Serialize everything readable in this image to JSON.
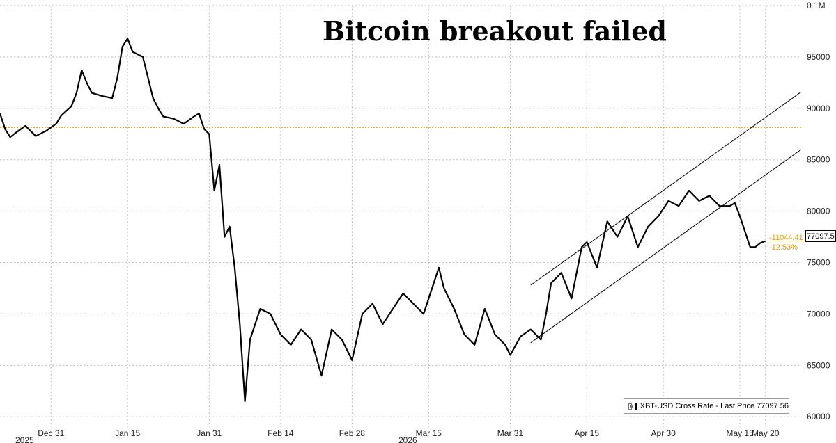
{
  "chart_data": {
    "type": "line",
    "title": "Bitcoin breakout failed",
    "xlabel": "",
    "ylabel": "",
    "x_tick_labels": [
      "Dec 31",
      "Jan 15",
      "Jan 31",
      "Feb 14",
      "Feb 28",
      "Mar 15",
      "Mar 31",
      "Apr 15",
      "Apr 30",
      "May 15",
      "May 20"
    ],
    "x_tick_dates": [
      "2025-12-31",
      "2026-01-15",
      "2026-01-31",
      "2026-02-14",
      "2026-02-28",
      "2026-03-15",
      "2026-03-31",
      "2026-04-15",
      "2026-04-30",
      "2026-05-15",
      "2026-05-20"
    ],
    "year_labels": [
      "2025",
      "2026"
    ],
    "y_tick_labels": [
      "60000",
      "65000",
      "70000",
      "75000",
      "80000",
      "85000",
      "90000",
      "95000",
      "0.1M"
    ],
    "y_tick_values": [
      60000,
      65000,
      70000,
      75000,
      80000,
      85000,
      90000,
      95000,
      100000
    ],
    "ylim": [
      59000,
      100000
    ],
    "xlim": [
      "2025-12-21",
      "2026-05-27"
    ],
    "grid": true,
    "legend_position": "bottom-right",
    "series": [
      {
        "name": "XBT-USD Cross Rate - Last Price 77097.56",
        "color": "#000000",
        "x": [
          "2025-12-21",
          "2025-12-22",
          "2025-12-23",
          "2025-12-24",
          "2025-12-26",
          "2025-12-28",
          "2025-12-30",
          "2026-01-01",
          "2026-01-02",
          "2026-01-04",
          "2026-01-05",
          "2026-01-06",
          "2026-01-07",
          "2026-01-08",
          "2026-01-10",
          "2026-01-12",
          "2026-01-13",
          "2026-01-14",
          "2026-01-15",
          "2026-01-16",
          "2026-01-18",
          "2026-01-19",
          "2026-01-20",
          "2026-01-21",
          "2026-01-22",
          "2026-01-24",
          "2026-01-26",
          "2026-01-28",
          "2026-01-29",
          "2026-01-30",
          "2026-01-31",
          "2026-02-01",
          "2026-02-02",
          "2026-02-03",
          "2026-02-04",
          "2026-02-05",
          "2026-02-06",
          "2026-02-07",
          "2026-02-08",
          "2026-02-10",
          "2026-02-12",
          "2026-02-14",
          "2026-02-16",
          "2026-02-18",
          "2026-02-20",
          "2026-02-22",
          "2026-02-24",
          "2026-02-26",
          "2026-02-28",
          "2026-03-02",
          "2026-03-04",
          "2026-03-06",
          "2026-03-08",
          "2026-03-10",
          "2026-03-12",
          "2026-03-14",
          "2026-03-16",
          "2026-03-17",
          "2026-03-18",
          "2026-03-20",
          "2026-03-22",
          "2026-03-24",
          "2026-03-26",
          "2026-03-28",
          "2026-03-30",
          "2026-03-31",
          "2026-04-02",
          "2026-04-04",
          "2026-04-06",
          "2026-04-07",
          "2026-04-08",
          "2026-04-10",
          "2026-04-12",
          "2026-04-14",
          "2026-04-15",
          "2026-04-17",
          "2026-04-19",
          "2026-04-21",
          "2026-04-23",
          "2026-04-25",
          "2026-04-27",
          "2026-04-29",
          "2026-05-01",
          "2026-05-03",
          "2026-05-05",
          "2026-05-07",
          "2026-05-09",
          "2026-05-11",
          "2026-05-13",
          "2026-05-14",
          "2026-05-15",
          "2026-05-16",
          "2026-05-17",
          "2026-05-18",
          "2026-05-19",
          "2026-05-20"
        ],
        "values": [
          89500,
          88000,
          87200,
          87600,
          88300,
          87300,
          87800,
          88500,
          89300,
          90200,
          91500,
          93700,
          92500,
          91500,
          91200,
          91000,
          93000,
          96000,
          96800,
          95500,
          95000,
          93000,
          91000,
          90000,
          89200,
          89000,
          88500,
          89200,
          89500,
          88000,
          87500,
          82000,
          84500,
          77500,
          78500,
          74500,
          69000,
          61500,
          67500,
          70500,
          70000,
          68000,
          67000,
          68500,
          67500,
          64000,
          68500,
          67500,
          65500,
          70000,
          71000,
          69000,
          70500,
          72000,
          71000,
          70000,
          73000,
          74500,
          72500,
          70500,
          68000,
          67000,
          70500,
          68000,
          67000,
          66000,
          67800,
          68500,
          67500,
          70000,
          73000,
          74000,
          71500,
          76500,
          77000,
          74500,
          79000,
          77500,
          79500,
          76500,
          78500,
          79500,
          81000,
          80500,
          82000,
          81000,
          81500,
          80500,
          80500,
          80800,
          79500,
          78000,
          76500,
          76500,
          76900,
          77097.56
        ]
      }
    ],
    "annotations": {
      "horizontal_reference": 88142,
      "channel_upper": {
        "start": [
          "2026-04-04",
          72800
        ],
        "end": [
          "2026-05-27",
          91600
        ]
      },
      "channel_lower": {
        "start": [
          "2026-04-04",
          67200
        ],
        "end": [
          "2026-05-27",
          86000
        ]
      },
      "last_price_label": "77097.56",
      "change_abs": "-11044.41",
      "change_pct": "-12.53%"
    }
  },
  "legend": {
    "label": "XBT-USD Cross Rate - Last Price 77097.56"
  },
  "colors": {
    "line": "#000000",
    "reference_line": "#e8a000",
    "grid": "#bdbdbd",
    "channel": "#000000"
  }
}
